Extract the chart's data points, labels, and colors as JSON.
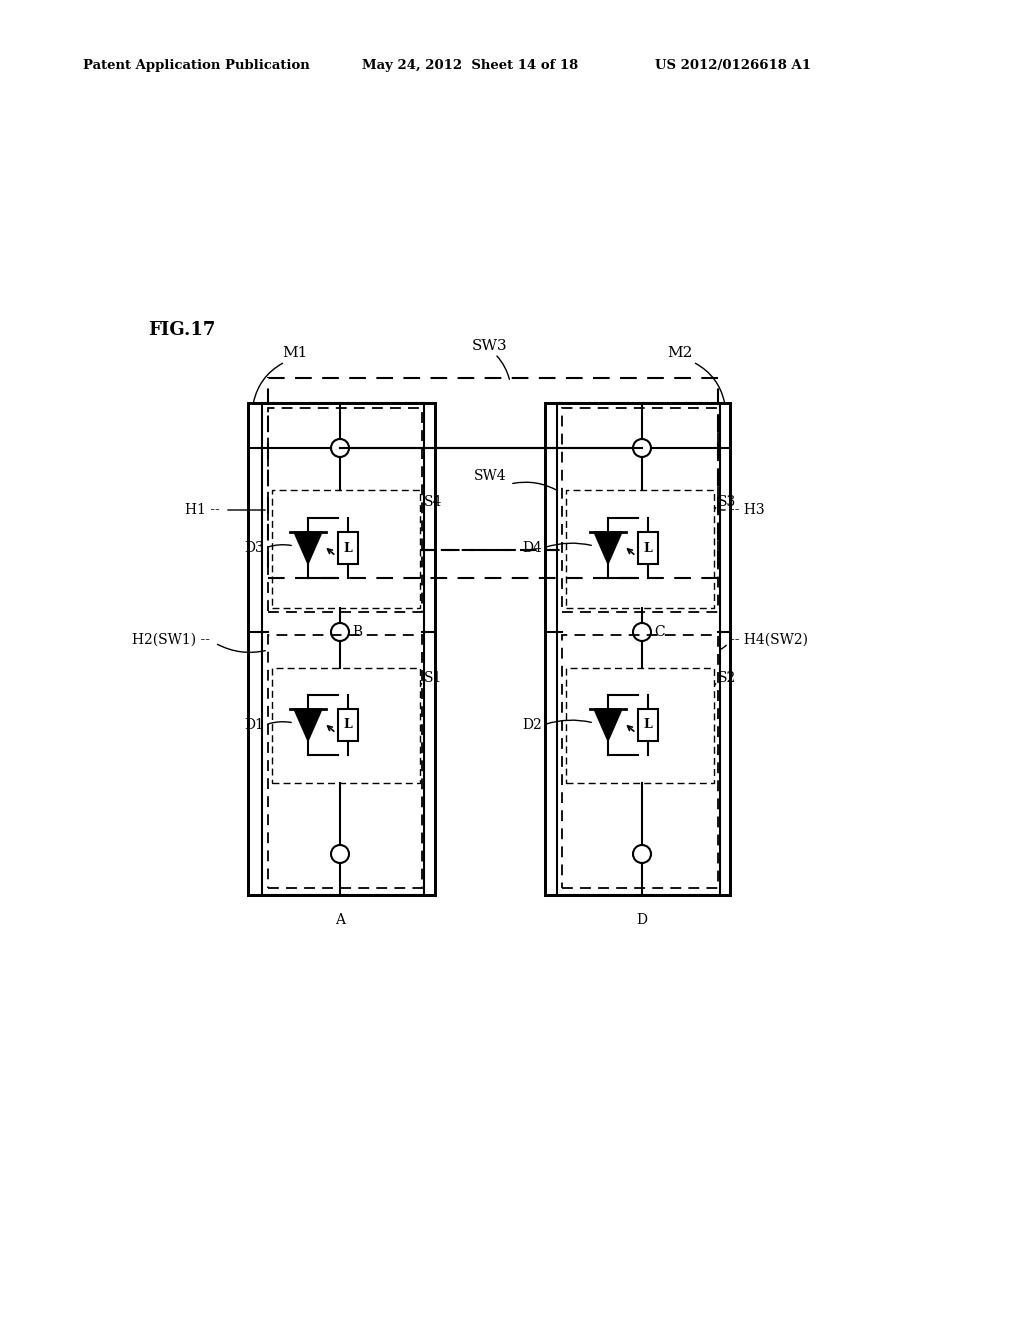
{
  "title": "FIG.17",
  "header_left": "Patent Application Publication",
  "header_mid": "May 24, 2012  Sheet 14 of 18",
  "header_right": "US 2012/0126618 A1",
  "bg_color": "#ffffff",
  "line_color": "#000000"
}
